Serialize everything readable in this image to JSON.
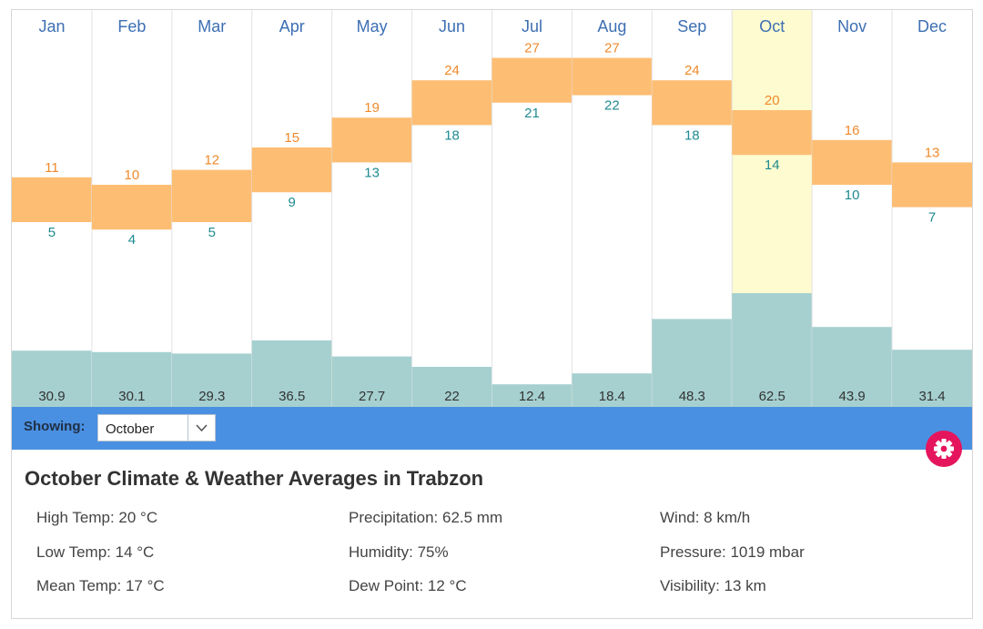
{
  "chart_data": {
    "type": "bar",
    "categories": [
      "Jan",
      "Feb",
      "Mar",
      "Apr",
      "May",
      "Jun",
      "Jul",
      "Aug",
      "Sep",
      "Oct",
      "Nov",
      "Dec"
    ],
    "series": [
      {
        "name": "High",
        "values": [
          11,
          10,
          12,
          15,
          19,
          24,
          27,
          27,
          24,
          20,
          16,
          13
        ]
      },
      {
        "name": "Low",
        "values": [
          5,
          4,
          5,
          9,
          13,
          18,
          21,
          22,
          18,
          14,
          10,
          7
        ]
      },
      {
        "name": "Precipitation",
        "values": [
          30.9,
          30.1,
          29.3,
          36.5,
          27.7,
          22,
          12.4,
          18.4,
          48.3,
          62.5,
          43.9,
          31.4
        ]
      }
    ],
    "highlighted_month": "Oct",
    "colors": {
      "temp_range": "#fdbe74",
      "high_label": "#ef8a2b",
      "low_label": "#1f8a8f",
      "precip": "#a6d0d0",
      "highlight": "#fdfbcf",
      "month_label": "#3d6fb3"
    }
  },
  "toolbar": {
    "showing_label": "Showing:",
    "selected_month": "October",
    "dropdown_icon": "chevron-down-icon",
    "settings_icon": "gear-icon",
    "accent": "#4a90e2",
    "settings_color": "#e5155d"
  },
  "details": {
    "title": "October Climate & Weather Averages in Trabzon",
    "high_temp": "High Temp: 20 °C",
    "low_temp": "Low Temp: 14 °C",
    "mean_temp": "Mean Temp: 17 °C",
    "precipitation": "Precipitation: 62.5 mm",
    "humidity": "Humidity: 75%",
    "dew_point": "Dew Point: 12 °C",
    "wind": "Wind: 8 km/h",
    "pressure": "Pressure: 1019 mbar",
    "visibility": "Visibility: 13 km"
  }
}
